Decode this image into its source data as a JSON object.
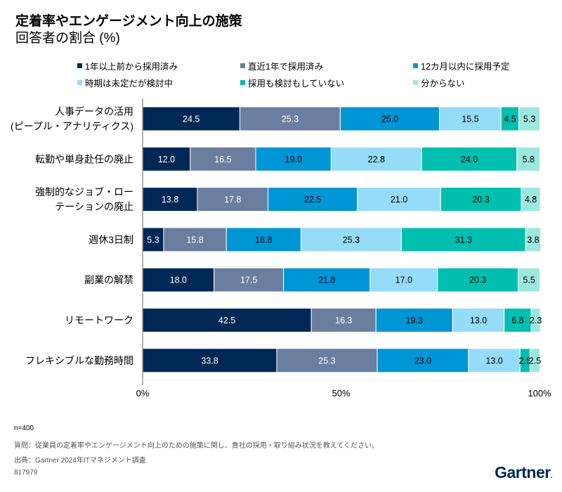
{
  "header": {
    "title": "定着率やエンゲージメント向上の施策",
    "subtitle": "回答者の割合 (%)"
  },
  "chart_data": {
    "type": "bar",
    "orientation": "horizontal",
    "stacked": true,
    "title": "定着率やエンゲージメント向上の施策",
    "subtitle": "回答者の割合 (%)",
    "xlabel": "",
    "ylabel": "",
    "xlim": [
      0,
      100
    ],
    "x_ticks": [
      "0%",
      "50%",
      "100%"
    ],
    "grid": false,
    "legend_position": "top",
    "categories": [
      [
        "人事データの活用",
        "(ピープル・アナリティクス)"
      ],
      [
        "転勤や単身赴任の廃止"
      ],
      [
        "強制的なジョブ・ロー",
        "テーションの廃止"
      ],
      [
        "週休3日制"
      ],
      [
        "副業の解禁"
      ],
      [
        "リモートワーク"
      ],
      [
        "フレキシブルな勤務時間"
      ]
    ],
    "series": [
      {
        "name": "1年以上前から採用済み",
        "color": "#002856",
        "label_color": "#ffffff",
        "values": [
          24.5,
          12.0,
          13.8,
          5.3,
          18.0,
          42.5,
          33.8
        ]
      },
      {
        "name": "直近1年で採用済み",
        "color": "#6a7fa0",
        "label_color": "#ffffff",
        "values": [
          25.3,
          16.5,
          17.8,
          15.8,
          17.5,
          16.3,
          25.3
        ]
      },
      {
        "name": "12カ月以内に採用予定",
        "color": "#0095d5",
        "label_color": "#000000",
        "values": [
          25.0,
          19.0,
          22.5,
          18.8,
          21.8,
          19.3,
          23.0
        ]
      },
      {
        "name": "時期は未定だが検討中",
        "color": "#94dcf7",
        "label_color": "#000000",
        "values": [
          15.5,
          22.8,
          21.0,
          25.3,
          17.0,
          13.0,
          13.0
        ]
      },
      {
        "name": "採用も検討もしていない",
        "color": "#00bfae",
        "label_color": "#000000",
        "values": [
          4.5,
          24.0,
          20.3,
          31.3,
          20.3,
          6.8,
          2.5
        ]
      },
      {
        "name": "分からない",
        "color": "#9de8dc",
        "label_color": "#000000",
        "values": [
          5.3,
          5.8,
          4.8,
          3.8,
          5.5,
          2.3,
          2.5
        ]
      }
    ]
  },
  "footer": {
    "n": "n=400",
    "question": "質問：従業員の定着率やエンゲージメント向上のための施策に関し、貴社の採用・取り組み状況を教えてください。",
    "source": "出典：Gartner 2024年ITマネジメント調査",
    "id": "817979",
    "logo": "Gartner",
    "logo_dot": "."
  }
}
